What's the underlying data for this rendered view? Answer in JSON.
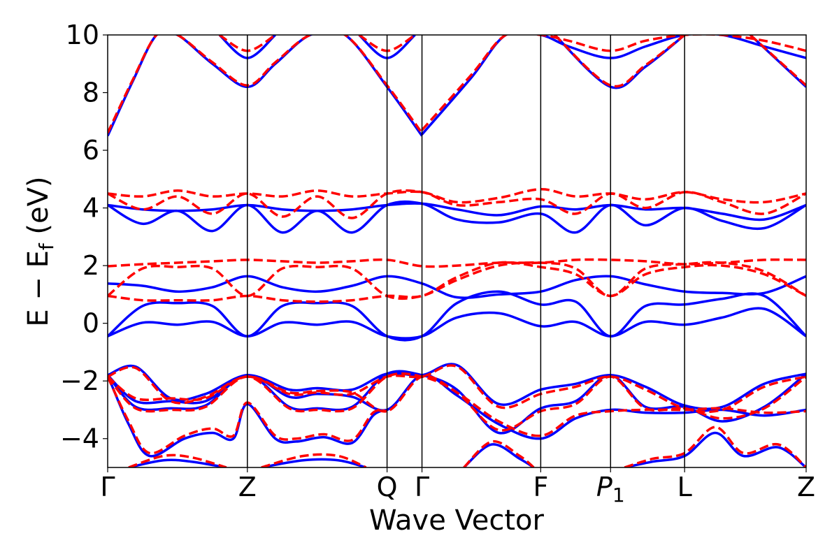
{
  "chart_data": {
    "type": "line",
    "title": "",
    "xlabel": "Wave Vector",
    "ylabel": "E − E",
    "ylabel_sub": "f",
    "ylabel_unit": " (eV)",
    "ylim": [
      -5,
      10
    ],
    "yticks": [
      -4,
      -2,
      0,
      2,
      4,
      6,
      8,
      10
    ],
    "ytick_labels": [
      "−4",
      "−2",
      "0",
      "2",
      "4",
      "6",
      "8",
      "10"
    ],
    "xlim": [
      0,
      5.0
    ],
    "kpoints": [
      {
        "label": "Γ",
        "x": 0.0
      },
      {
        "label": "Z",
        "x": 1.0
      },
      {
        "label": "Q",
        "x": 2.0
      },
      {
        "label": "Γ",
        "x": 2.25
      },
      {
        "label": "F",
        "x": 3.1
      },
      {
        "label": "P",
        "sub": "1",
        "italic": true,
        "x": 3.6
      },
      {
        "label": "L",
        "x": 4.13
      },
      {
        "label": "Z",
        "x": 5.0
      }
    ],
    "grid": false,
    "legend": "none",
    "colors": {
      "solid": "#0000ff",
      "dashed": "#ff0000",
      "frame": "#000000"
    },
    "series": [
      {
        "style": "solid",
        "color": "#0000ff",
        "x": [
          0,
          0.25,
          0.5,
          0.75,
          1.0,
          1.25,
          1.5,
          1.75,
          2.0,
          2.25,
          2.5,
          2.8,
          3.1,
          3.35,
          3.6,
          3.85,
          4.13,
          4.4,
          4.7,
          5.0
        ],
        "y": [
          -0.45,
          0.02,
          -0.05,
          0.05,
          -0.45,
          0.02,
          -0.05,
          0.05,
          -0.45,
          -0.45,
          0.2,
          0.35,
          -0.1,
          0.05,
          -0.45,
          0.05,
          -0.05,
          0.2,
          0.5,
          -0.45
        ]
      },
      {
        "style": "solid",
        "color": "#0000ff",
        "x": [
          0,
          0.25,
          0.5,
          0.75,
          1.0,
          1.25,
          1.5,
          1.75,
          2.0,
          2.25,
          2.5,
          2.8,
          3.1,
          3.35,
          3.6,
          3.85,
          4.13,
          4.4,
          4.7,
          5.0
        ],
        "y": [
          -0.45,
          0.6,
          0.7,
          0.6,
          -0.45,
          0.6,
          0.7,
          0.6,
          -0.45,
          -0.45,
          0.7,
          1.1,
          0.65,
          0.75,
          -0.45,
          0.6,
          0.65,
          0.85,
          0.95,
          -0.45
        ]
      },
      {
        "style": "solid",
        "color": "#0000ff",
        "x": [
          0,
          0.25,
          0.5,
          0.75,
          1.0,
          1.25,
          1.5,
          1.75,
          2.0,
          2.25,
          2.5,
          2.8,
          3.1,
          3.35,
          3.6,
          3.85,
          4.13,
          4.4,
          4.7,
          5.0
        ],
        "y": [
          1.38,
          1.3,
          1.1,
          1.25,
          1.63,
          1.25,
          1.1,
          1.3,
          1.63,
          1.38,
          0.9,
          1.0,
          1.1,
          1.5,
          1.63,
          1.35,
          1.1,
          1.05,
          1.05,
          1.63
        ]
      },
      {
        "style": "solid",
        "color": "#0000ff",
        "x": [
          0,
          0.25,
          0.5,
          0.75,
          1.0,
          1.25,
          1.5,
          1.75,
          2.0,
          2.25,
          2.5,
          2.8,
          3.1,
          3.35,
          3.6,
          3.85,
          4.13,
          4.4,
          4.7,
          5.0
        ],
        "y": [
          4.1,
          3.95,
          3.9,
          3.95,
          4.1,
          3.95,
          3.9,
          3.95,
          4.1,
          4.15,
          3.95,
          3.75,
          4.05,
          3.95,
          4.1,
          3.95,
          4.0,
          3.8,
          3.6,
          4.1
        ]
      },
      {
        "style": "solid",
        "color": "#0000ff",
        "x": [
          0,
          0.25,
          0.5,
          0.75,
          1.0,
          1.25,
          1.5,
          1.75,
          2.0,
          2.25,
          2.5,
          2.8,
          3.1,
          3.35,
          3.6,
          3.85,
          4.13,
          4.4,
          4.7,
          5.0
        ],
        "y": [
          4.1,
          3.45,
          3.9,
          3.2,
          4.1,
          3.15,
          3.9,
          3.15,
          4.1,
          4.15,
          3.6,
          3.5,
          3.8,
          3.15,
          4.1,
          3.4,
          4.0,
          3.55,
          3.3,
          4.1
        ]
      },
      {
        "style": "solid",
        "color": "#0000ff",
        "x": [
          0,
          0.2,
          0.45,
          0.7,
          1.0,
          1.3,
          1.5,
          1.75,
          2.0,
          2.25,
          2.5,
          2.8,
          3.1,
          3.35,
          3.6,
          3.85,
          4.13,
          4.4,
          4.7,
          5.0
        ],
        "y": [
          -1.8,
          -1.5,
          -2.6,
          -2.45,
          -1.8,
          -2.3,
          -2.25,
          -2.3,
          -1.75,
          -1.8,
          -1.45,
          -2.8,
          -2.3,
          -2.1,
          -1.8,
          -2.2,
          -2.85,
          -2.9,
          -2.1,
          -1.75
        ]
      },
      {
        "style": "solid",
        "color": "#0000ff",
        "x": [
          0,
          0.2,
          0.45,
          0.7,
          1.0,
          1.3,
          1.5,
          1.75,
          2.0,
          2.25,
          2.5,
          2.8,
          3.1,
          3.35,
          3.6,
          3.85,
          4.13,
          4.4,
          4.7,
          5.0
        ],
        "y": [
          -1.8,
          -2.9,
          -2.95,
          -2.85,
          -1.8,
          -2.9,
          -2.95,
          -2.9,
          -1.75,
          -1.8,
          -2.3,
          -3.8,
          -2.95,
          -2.7,
          -1.8,
          -2.9,
          -2.9,
          -3.4,
          -2.9,
          -1.75
        ]
      },
      {
        "style": "solid",
        "color": "#0000ff",
        "x": [
          0,
          0.2,
          0.45,
          0.7,
          1.0,
          1.3,
          1.5,
          1.75,
          2.0,
          2.25,
          2.5,
          2.8,
          3.1,
          3.35,
          3.6,
          3.85,
          4.13,
          4.4,
          4.7,
          5.0
        ],
        "y": [
          -1.8,
          -2.7,
          -2.7,
          -2.7,
          -1.8,
          -2.55,
          -2.45,
          -2.55,
          -3.0,
          -1.8,
          -2.5,
          -3.5,
          -4.0,
          -3.3,
          -3.0,
          -3.1,
          -3.1,
          -3.0,
          -3.2,
          -3.0
        ]
      },
      {
        "style": "solid",
        "color": "#0000ff",
        "x": [
          0,
          0.15,
          0.3,
          0.55,
          0.75,
          0.9,
          1.0,
          1.2,
          1.35,
          1.55,
          1.75,
          1.9,
          2.0
        ],
        "y": [
          -1.8,
          -3.5,
          -4.6,
          -4.0,
          -3.8,
          -4.0,
          -2.8,
          -4.0,
          -4.1,
          -3.95,
          -4.15,
          -3.2,
          -3.0
        ]
      },
      {
        "style": "solid",
        "color": "#0000ff",
        "x": [
          0.15,
          0.4,
          0.6,
          0.85
        ],
        "y": [
          -5.0,
          -4.75,
          -4.8,
          -5.0
        ]
      },
      {
        "style": "solid",
        "color": "#0000ff",
        "x": [
          1.1,
          1.4,
          1.65,
          1.85
        ],
        "y": [
          -5.0,
          -4.75,
          -4.75,
          -5.0
        ]
      },
      {
        "style": "solid",
        "color": "#0000ff",
        "x": [
          2.55,
          2.75,
          2.95,
          3.05
        ],
        "y": [
          -5.0,
          -4.2,
          -4.7,
          -5.0
        ]
      },
      {
        "style": "solid",
        "color": "#0000ff",
        "x": [
          3.7,
          3.9,
          4.13,
          4.35,
          4.55,
          4.8,
          5.0
        ],
        "y": [
          -5.0,
          -4.8,
          -4.6,
          -3.8,
          -4.6,
          -4.3,
          -5.0
        ]
      },
      {
        "style": "solid",
        "color": "#0000ff",
        "x": [
          2.25,
          2.6,
          2.85,
          3.1,
          3.3,
          3.6,
          3.85,
          4.13,
          4.4,
          4.7,
          5.0
        ],
        "y": [
          6.55,
          8.5,
          10.0,
          10.0,
          9.6,
          9.2,
          9.6,
          10.0,
          10.0,
          9.6,
          9.2
        ]
      },
      {
        "style": "solid",
        "color": "#0000ff",
        "x": [
          0,
          0.18,
          0.35,
          0.5,
          0.75,
          1.0,
          1.2,
          1.45,
          1.7,
          2.0,
          2.25
        ],
        "y": [
          6.5,
          8.4,
          10.0,
          10.0,
          9.0,
          8.2,
          9.0,
          10.0,
          10.0,
          8.2,
          6.5
        ]
      },
      {
        "style": "solid",
        "color": "#0000ff",
        "x": [
          0.8,
          1.0,
          1.2
        ],
        "y": [
          10.0,
          9.2,
          10.0
        ]
      },
      {
        "style": "solid",
        "color": "#0000ff",
        "x": [
          1.8,
          2.0,
          2.2
        ],
        "y": [
          10.0,
          9.2,
          10.0
        ]
      },
      {
        "style": "solid",
        "color": "#0000ff",
        "x": [
          3.2,
          3.6,
          3.85,
          4.13
        ],
        "y": [
          10.0,
          8.2,
          8.9,
          10.0
        ]
      },
      {
        "style": "solid",
        "color": "#0000ff",
        "x": [
          4.6,
          5.0
        ],
        "y": [
          10.0,
          8.2
        ]
      },
      {
        "style": "dashed",
        "color": "#ff0000",
        "x": [
          0,
          0.25,
          0.5,
          0.75,
          1.0,
          1.25,
          1.5,
          1.75,
          2.0,
          2.25,
          2.5,
          2.8,
          3.1,
          3.35,
          3.6,
          3.85,
          4.13,
          4.4,
          4.7,
          5.0
        ],
        "y": [
          0.95,
          0.8,
          0.8,
          0.8,
          0.95,
          0.8,
          0.75,
          0.8,
          0.95,
          0.95,
          1.6,
          2.1,
          1.95,
          1.7,
          0.95,
          1.7,
          1.95,
          2.0,
          1.7,
          0.95
        ]
      },
      {
        "style": "dashed",
        "color": "#ff0000",
        "x": [
          0,
          0.25,
          0.5,
          0.75,
          1.0,
          1.25,
          1.5,
          1.75,
          2.0,
          2.25,
          2.5,
          2.8,
          3.1,
          3.35,
          3.6,
          3.85,
          4.13,
          4.4,
          4.7,
          5.0
        ],
        "y": [
          0.95,
          1.9,
          1.95,
          1.9,
          0.95,
          1.9,
          1.95,
          1.9,
          0.95,
          0.95,
          1.5,
          2.0,
          2.1,
          1.9,
          0.95,
          1.9,
          2.05,
          2.1,
          1.8,
          0.95
        ]
      },
      {
        "style": "dashed",
        "color": "#ff0000",
        "x": [
          0,
          0.25,
          0.5,
          0.75,
          1.0,
          1.25,
          1.5,
          1.75,
          2.0,
          2.25,
          2.5,
          2.8,
          3.1,
          3.35,
          3.6,
          3.85,
          4.13,
          4.4,
          4.7,
          5.0
        ],
        "y": [
          1.98,
          2.05,
          2.1,
          2.15,
          2.2,
          2.15,
          2.1,
          2.15,
          2.2,
          1.98,
          2.0,
          2.1,
          2.1,
          2.2,
          2.2,
          2.15,
          2.05,
          2.1,
          2.2,
          2.2
        ]
      },
      {
        "style": "dashed",
        "color": "#ff0000",
        "x": [
          0,
          0.25,
          0.5,
          0.75,
          1.0,
          1.25,
          1.5,
          1.75,
          2.0,
          2.25,
          2.5,
          2.8,
          3.1,
          3.35,
          3.6,
          3.85,
          4.13,
          4.4,
          4.7,
          5.0
        ],
        "y": [
          4.5,
          4.4,
          4.6,
          4.4,
          4.5,
          4.4,
          4.6,
          4.4,
          4.5,
          4.55,
          4.2,
          4.35,
          4.65,
          4.4,
          4.5,
          4.3,
          4.55,
          4.3,
          4.2,
          4.5
        ]
      },
      {
        "style": "dashed",
        "color": "#ff0000",
        "x": [
          0,
          0.25,
          0.5,
          0.75,
          1.0,
          1.25,
          1.5,
          1.75,
          2.0,
          2.25,
          2.5,
          2.8,
          3.1,
          3.35,
          3.6,
          3.85,
          4.13,
          4.4,
          4.7,
          5.0
        ],
        "y": [
          4.5,
          3.95,
          4.4,
          3.8,
          4.5,
          3.7,
          4.4,
          3.65,
          4.5,
          4.55,
          4.1,
          4.2,
          4.3,
          3.8,
          4.5,
          4.0,
          4.55,
          4.2,
          3.8,
          4.5
        ]
      },
      {
        "style": "dashed",
        "color": "#ff0000",
        "x": [
          0,
          0.2,
          0.45,
          0.7,
          1.0,
          1.3,
          1.5,
          1.75,
          2.0,
          2.25,
          2.5,
          2.8,
          3.1,
          3.35,
          3.6,
          3.85,
          4.13,
          4.4,
          4.7,
          5.0
        ],
        "y": [
          -1.85,
          -1.55,
          -2.7,
          -2.55,
          -1.85,
          -2.45,
          -2.4,
          -2.45,
          -1.85,
          -1.85,
          -1.5,
          -2.9,
          -2.45,
          -2.2,
          -1.85,
          -2.3,
          -2.95,
          -3.0,
          -2.2,
          -1.85
        ]
      },
      {
        "style": "dashed",
        "color": "#ff0000",
        "x": [
          0,
          0.2,
          0.45,
          0.7,
          1.0,
          1.3,
          1.5,
          1.75,
          2.0,
          2.25,
          2.5,
          2.8,
          3.1,
          3.35,
          3.6,
          3.85,
          4.13,
          4.4,
          4.7,
          5.0
        ],
        "y": [
          -1.85,
          -2.95,
          -3.0,
          -2.9,
          -1.85,
          -2.95,
          -3.0,
          -2.95,
          -1.85,
          -1.85,
          -2.4,
          -3.7,
          -3.05,
          -2.8,
          -1.85,
          -2.95,
          -2.95,
          -3.3,
          -2.95,
          -1.85
        ]
      },
      {
        "style": "dashed",
        "color": "#ff0000",
        "x": [
          0,
          0.2,
          0.45,
          0.7,
          1.0,
          1.3,
          1.5,
          1.75,
          2.0,
          2.25,
          2.5,
          2.8,
          3.1,
          3.35,
          3.6,
          3.85,
          4.13,
          4.4,
          4.7,
          5.0
        ],
        "y": [
          -1.85,
          -2.6,
          -2.6,
          -2.6,
          -1.85,
          -2.4,
          -2.35,
          -2.4,
          -3.05,
          -1.85,
          -2.4,
          -3.4,
          -3.9,
          -3.2,
          -3.05,
          -3.0,
          -3.0,
          -2.95,
          -3.1,
          -3.05
        ]
      },
      {
        "style": "dashed",
        "color": "#ff0000",
        "x": [
          0,
          0.15,
          0.3,
          0.55,
          0.75,
          0.9,
          1.0,
          1.2,
          1.35,
          1.55,
          1.75,
          1.9,
          2.0
        ],
        "y": [
          -1.85,
          -3.4,
          -4.5,
          -3.9,
          -3.65,
          -3.9,
          -2.75,
          -3.9,
          -4.0,
          -3.85,
          -4.05,
          -3.1,
          -3.05
        ]
      },
      {
        "style": "dashed",
        "color": "#ff0000",
        "x": [
          0.15,
          0.4,
          0.6,
          0.85
        ],
        "y": [
          -5.0,
          -4.6,
          -4.65,
          -5.0
        ]
      },
      {
        "style": "dashed",
        "color": "#ff0000",
        "x": [
          1.1,
          1.4,
          1.65,
          1.85
        ],
        "y": [
          -5.0,
          -4.6,
          -4.6,
          -5.0
        ]
      },
      {
        "style": "dashed",
        "color": "#ff0000",
        "x": [
          2.55,
          2.75,
          2.95,
          3.05
        ],
        "y": [
          -5.0,
          -4.1,
          -4.6,
          -5.0
        ]
      },
      {
        "style": "dashed",
        "color": "#ff0000",
        "x": [
          3.7,
          3.9,
          4.13,
          4.35,
          4.55,
          4.8,
          5.0
        ],
        "y": [
          -5.0,
          -4.7,
          -4.5,
          -3.6,
          -4.5,
          -4.2,
          -5.0
        ]
      },
      {
        "style": "dashed",
        "color": "#ff0000",
        "x": [
          2.25,
          2.6,
          2.85,
          3.1,
          3.3,
          3.6,
          3.85,
          4.13,
          4.4,
          4.7,
          5.0
        ],
        "y": [
          6.7,
          8.6,
          10.0,
          10.0,
          9.8,
          9.45,
          9.8,
          10.0,
          10.0,
          9.8,
          9.45
        ]
      },
      {
        "style": "dashed",
        "color": "#ff0000",
        "x": [
          0,
          0.18,
          0.35,
          0.5,
          0.75,
          1.0,
          1.2,
          1.45,
          1.7,
          2.0,
          2.25
        ],
        "y": [
          6.6,
          8.45,
          10.0,
          10.0,
          9.05,
          8.25,
          9.05,
          10.0,
          10.0,
          8.25,
          6.6
        ]
      },
      {
        "style": "dashed",
        "color": "#ff0000",
        "x": [
          0.8,
          1.0,
          1.2
        ],
        "y": [
          10.0,
          9.45,
          10.0
        ]
      },
      {
        "style": "dashed",
        "color": "#ff0000",
        "x": [
          1.8,
          2.0,
          2.2
        ],
        "y": [
          10.0,
          9.45,
          10.0
        ]
      },
      {
        "style": "dashed",
        "color": "#ff0000",
        "x": [
          3.2,
          3.6,
          3.85,
          4.13
        ],
        "y": [
          10.0,
          8.25,
          8.95,
          10.0
        ]
      },
      {
        "style": "dashed",
        "color": "#ff0000",
        "x": [
          4.6,
          5.0
        ],
        "y": [
          10.0,
          8.25
        ]
      }
    ]
  }
}
